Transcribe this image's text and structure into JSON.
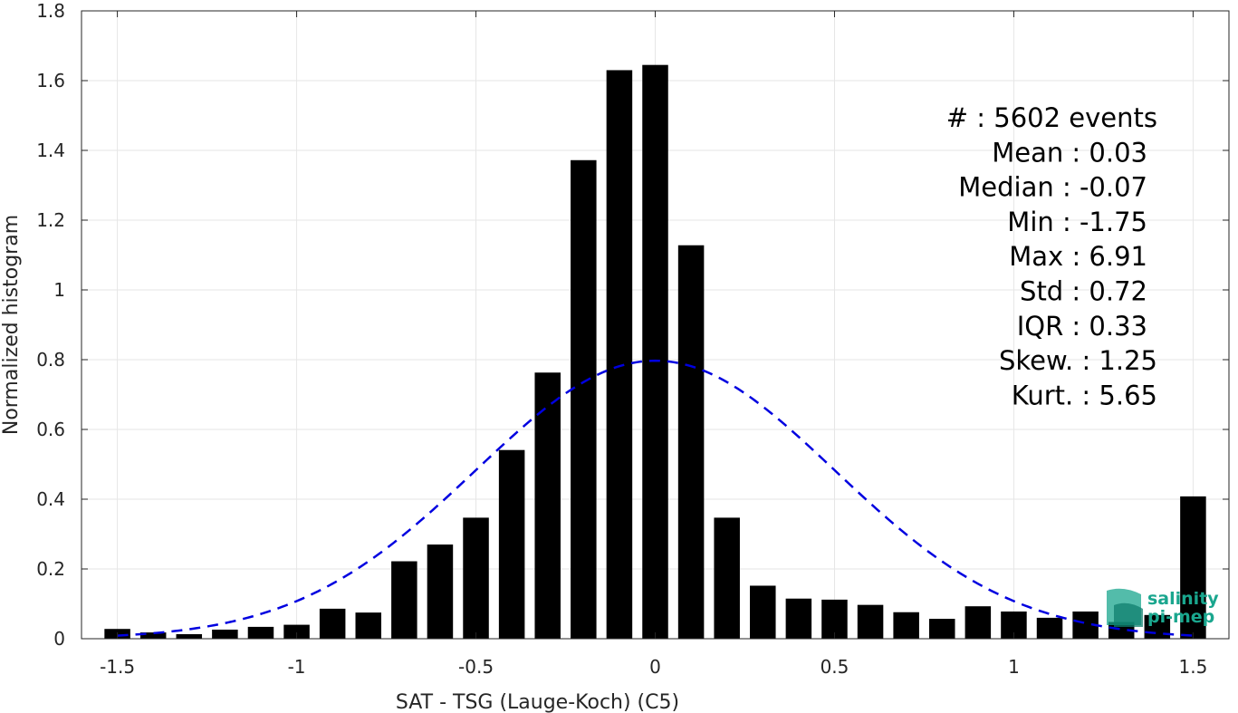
{
  "chart_data": {
    "type": "bar",
    "xlabel": "SAT - TSG (Lauge-Koch) (C5)",
    "ylabel": "Normalized histogram",
    "xlim": [
      -1.6,
      1.6
    ],
    "ylim": [
      0,
      1.8
    ],
    "grid": true,
    "x_ticks": [
      "-1.5",
      "-1",
      "-0.5",
      "0",
      "0.5",
      "1",
      "1.5"
    ],
    "y_ticks": [
      "0",
      "0.2",
      "0.4",
      "0.6",
      "0.8",
      "1",
      "1.2",
      "1.4",
      "1.6",
      "1.8"
    ],
    "bin_width": 0.1,
    "x": [
      -1.5,
      -1.4,
      -1.3,
      -1.2,
      -1.1,
      -1.0,
      -0.9,
      -0.8,
      -0.7,
      -0.6,
      -0.5,
      -0.4,
      -0.3,
      -0.2,
      -0.1,
      0.0,
      0.1,
      0.2,
      0.3,
      0.4,
      0.5,
      0.6,
      0.7,
      0.8,
      0.9,
      1.0,
      1.1,
      1.2,
      1.3,
      1.4,
      1.5
    ],
    "values": [
      0.028,
      0.018,
      0.013,
      0.026,
      0.034,
      0.04,
      0.086,
      0.075,
      0.222,
      0.27,
      0.347,
      0.541,
      0.763,
      1.372,
      1.63,
      1.645,
      1.128,
      0.347,
      0.152,
      0.115,
      0.112,
      0.097,
      0.076,
      0.057,
      0.093,
      0.078,
      0.06,
      0.078,
      0.048,
      0.068,
      0.408
    ],
    "fit_curve": {
      "type": "normal",
      "mean": 0.0,
      "std": 0.5,
      "peak": 0.797,
      "style": "dashed",
      "color": "#0000e0"
    },
    "bar_color": "#000000",
    "stats_lines": [
      "#  : 5602 events",
      "Mean : 0.03",
      "Median : -0.07",
      "Min : -1.75",
      "Max : 6.91",
      "Std : 0.72",
      "IQR : 0.33",
      "Skew. : 1.25",
      "Kurt. : 5.65"
    ]
  },
  "logo": {
    "line1": "salinity",
    "line2": "pi-mep",
    "color": "#1aa68e"
  }
}
